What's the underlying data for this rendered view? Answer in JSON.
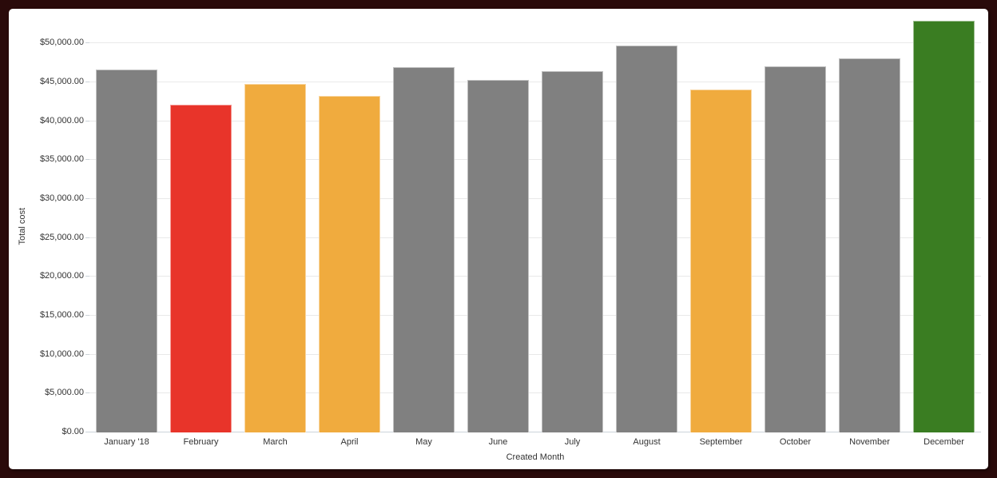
{
  "chart_data": {
    "type": "bar",
    "xlabel": "Created Month",
    "ylabel": "Total cost",
    "categories": [
      "January '18",
      "February",
      "March",
      "April",
      "May",
      "June",
      "July",
      "August",
      "September",
      "October",
      "November",
      "December"
    ],
    "values": [
      46600,
      42100,
      44750,
      43200,
      46900,
      45250,
      46400,
      49700,
      44100,
      47000,
      48100,
      52950
    ],
    "bar_colors": [
      "#808080",
      "#e8342a",
      "#f0ab3e",
      "#f0ab3e",
      "#808080",
      "#808080",
      "#808080",
      "#808080",
      "#f0ab3e",
      "#808080",
      "#808080",
      "#3a7d22"
    ],
    "y_ticks": [
      "$0.00",
      "$5,000.00",
      "$10,000.00",
      "$15,000.00",
      "$20,000.00",
      "$25,000.00",
      "$30,000.00",
      "$35,000.00",
      "$40,000.00",
      "$45,000.00",
      "$50,000.00"
    ],
    "y_tick_values": [
      0,
      5000,
      10000,
      15000,
      20000,
      25000,
      30000,
      35000,
      40000,
      45000,
      50000
    ],
    "ylim": [
      0,
      53000
    ],
    "grid": true,
    "legend": false
  },
  "colors": {
    "frame": "#2a0a0a",
    "panel_bg": "#ffffff",
    "gridline": "#e9e9e9",
    "axis_line": "#ccd3d9",
    "axis_text": "#333333"
  }
}
